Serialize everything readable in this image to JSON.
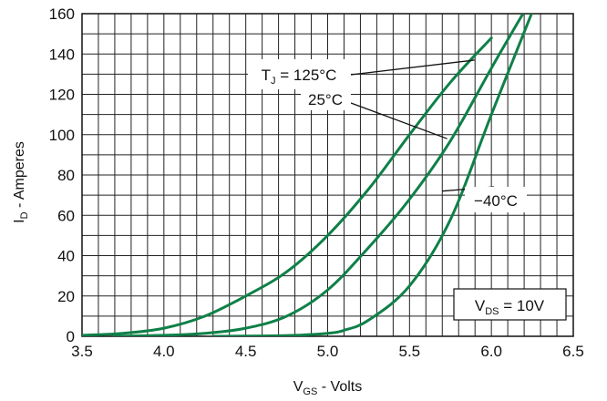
{
  "chart_data": {
    "type": "line",
    "title": "",
    "xlabel": {
      "main": "V",
      "sub": "GS",
      "rest": " - Volts"
    },
    "ylabel": {
      "main": "I",
      "sub": "D",
      "rest": " - Amperes"
    },
    "xlim": [
      3.5,
      6.5
    ],
    "ylim": [
      0,
      160
    ],
    "x_ticks": [
      3.5,
      4.0,
      4.5,
      5.0,
      5.5,
      6.0,
      6.5
    ],
    "x_tick_labels": [
      "3.5",
      "4.0",
      "4.5",
      "5.0",
      "5.5",
      "6.0",
      "6.5"
    ],
    "y_ticks": [
      0,
      20,
      40,
      60,
      80,
      100,
      120,
      140,
      160
    ],
    "y_tick_labels": [
      "0",
      "20",
      "40",
      "60",
      "80",
      "100",
      "120",
      "140",
      "160"
    ],
    "minor_x_step": 0.1,
    "minor_y_step": 10,
    "grid": true,
    "line_color": "#0f8048",
    "series": [
      {
        "name": {
          "main": "T",
          "sub": "J",
          "rest": " = 125°C"
        },
        "x": [
          3.5,
          3.75,
          4.0,
          4.25,
          4.5,
          4.75,
          5.0,
          5.25,
          5.5,
          5.75,
          6.0
        ],
        "y": [
          0.5,
          1.5,
          4,
          10,
          20,
          32,
          50,
          73,
          100,
          126,
          148
        ]
      },
      {
        "name": {
          "main": "",
          "sub": "",
          "rest": "25°C"
        },
        "x": [
          3.7,
          4.0,
          4.25,
          4.5,
          4.75,
          5.0,
          5.25,
          5.5,
          5.75,
          6.0,
          6.2
        ],
        "y": [
          0,
          0.5,
          1.5,
          4,
          10,
          23,
          44,
          68,
          97,
          133,
          161
        ]
      },
      {
        "name": {
          "main": "",
          "sub": "",
          "rest": "−40°C"
        },
        "x": [
          4.3,
          4.6,
          4.8,
          5.0,
          5.1,
          5.25,
          5.5,
          5.75,
          6.0,
          6.25
        ],
        "y": [
          0,
          0.2,
          0.5,
          1.5,
          3,
          8,
          25,
          58,
          110,
          161
        ]
      }
    ],
    "annotations": {
      "condition": {
        "main": "V",
        "sub": "DS",
        "rest": " = 10V"
      }
    }
  }
}
